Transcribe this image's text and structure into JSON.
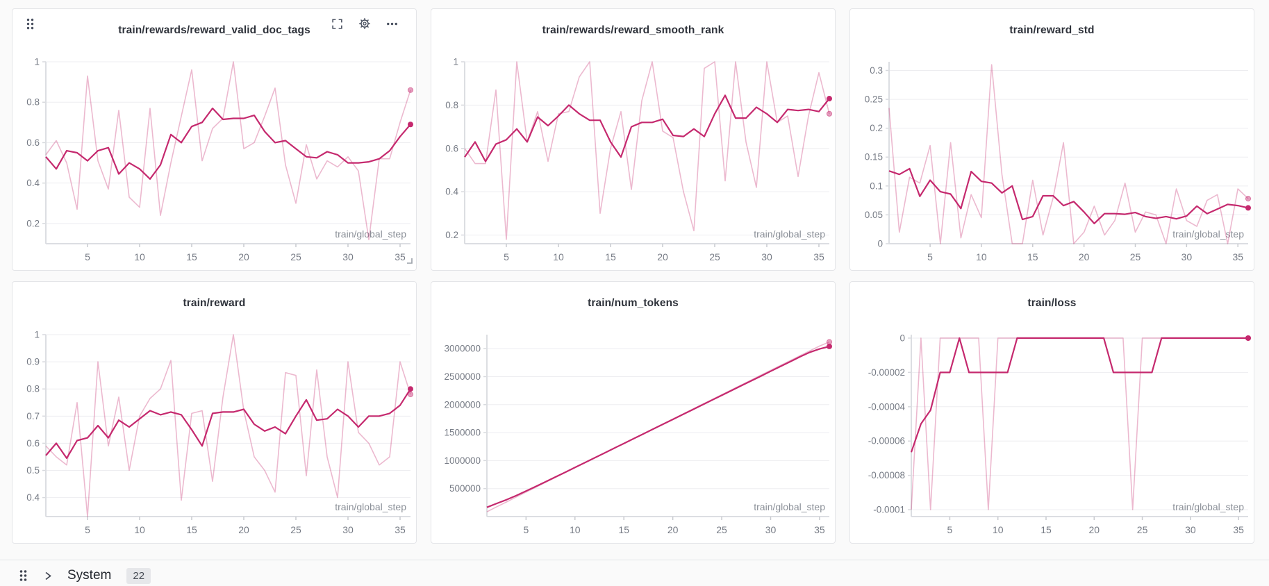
{
  "toolbar": {
    "icons": [
      "drag-handle",
      "fullscreen",
      "settings-gear",
      "more-options",
      "resize-corner"
    ]
  },
  "system_section": {
    "icons": [
      "drag-handle",
      "chevron-right"
    ],
    "label": "System",
    "count": "22"
  },
  "style_colors": {
    "series": "#c5296e",
    "raw_opacity": 0.33,
    "page_bg": "#fafafa",
    "card_bg": "#ffffff",
    "grid_line": "#ededf0",
    "axis_line": "#dcdee2",
    "tick_text": "#767b85"
  },
  "chart_data": [
    {
      "type": "line",
      "title": "train/rewards/reward_valid_doc_tags",
      "x_axis_label": "train/global_step",
      "x_range": [
        1,
        36
      ],
      "x_ticks": [
        5,
        10,
        15,
        20,
        25,
        30,
        35
      ],
      "ylim": [
        0.1,
        1.0
      ],
      "y_ticks": [
        1,
        0.8,
        0.6,
        0.4,
        0.2
      ],
      "y_tick_labels": [
        "1",
        "0.8",
        "0.6",
        "0.4",
        "0.2"
      ],
      "color": "#c5296e",
      "tools_visible": true,
      "series": [
        {
          "name": "raw",
          "values": [
            0.54,
            0.61,
            0.5,
            0.27,
            0.93,
            0.51,
            0.37,
            0.76,
            0.33,
            0.28,
            0.77,
            0.24,
            0.5,
            0.73,
            0.96,
            0.51,
            0.67,
            0.72,
            1.0,
            0.57,
            0.6,
            0.73,
            0.87,
            0.49,
            0.3,
            0.59,
            0.42,
            0.51,
            0.48,
            0.53,
            0.46,
            0.12,
            0.52,
            0.52,
            0.7,
            0.86
          ]
        },
        {
          "name": "smoothed",
          "values": [
            0.53,
            0.47,
            0.56,
            0.55,
            0.51,
            0.56,
            0.575,
            0.445,
            0.5,
            0.47,
            0.42,
            0.49,
            0.64,
            0.6,
            0.68,
            0.7,
            0.77,
            0.715,
            0.72,
            0.72,
            0.735,
            0.655,
            0.6,
            0.61,
            0.57,
            0.53,
            0.525,
            0.555,
            0.54,
            0.5,
            0.5,
            0.505,
            0.52,
            0.56,
            0.63,
            0.69
          ]
        }
      ]
    },
    {
      "type": "line",
      "title": "train/rewards/reward_smooth_rank",
      "x_axis_label": "train/global_step",
      "x_range": [
        1,
        36
      ],
      "x_ticks": [
        5,
        10,
        15,
        20,
        25,
        30,
        35
      ],
      "ylim": [
        0.16,
        1.0
      ],
      "y_ticks": [
        1,
        0.8,
        0.6,
        0.4,
        0.2
      ],
      "y_tick_labels": [
        "1",
        "0.8",
        "0.6",
        "0.4",
        "0.2"
      ],
      "color": "#c5296e",
      "tools_visible": false,
      "series": [
        {
          "name": "raw",
          "values": [
            0.6,
            0.53,
            0.53,
            0.87,
            0.18,
            1.0,
            0.63,
            0.77,
            0.54,
            0.76,
            0.77,
            0.93,
            1.0,
            0.3,
            0.6,
            0.77,
            0.41,
            0.82,
            1.0,
            0.68,
            0.65,
            0.4,
            0.22,
            0.97,
            1.0,
            0.45,
            1.0,
            0.63,
            0.42,
            1.0,
            0.72,
            0.75,
            0.47,
            0.75,
            0.95,
            0.76
          ]
        },
        {
          "name": "smoothed",
          "values": [
            0.56,
            0.63,
            0.54,
            0.62,
            0.64,
            0.69,
            0.63,
            0.745,
            0.705,
            0.75,
            0.8,
            0.76,
            0.73,
            0.73,
            0.63,
            0.56,
            0.7,
            0.72,
            0.72,
            0.735,
            0.66,
            0.655,
            0.69,
            0.655,
            0.76,
            0.845,
            0.74,
            0.74,
            0.79,
            0.76,
            0.72,
            0.78,
            0.775,
            0.78,
            0.77,
            0.83
          ]
        }
      ]
    },
    {
      "type": "line",
      "title": "train/reward_std",
      "x_axis_label": "train/global_step",
      "x_range": [
        1,
        36
      ],
      "x_ticks": [
        5,
        10,
        15,
        20,
        25,
        30,
        35
      ],
      "ylim": [
        0,
        0.315
      ],
      "y_ticks": [
        0.3,
        0.25,
        0.2,
        0.15,
        0.1,
        0.05,
        0
      ],
      "y_tick_labels": [
        "0.3",
        "0.25",
        "0.2",
        "0.15",
        "0.1",
        "0.05",
        "0"
      ],
      "color": "#c5296e",
      "tools_visible": false,
      "series": [
        {
          "name": "raw",
          "values": [
            0.235,
            0.02,
            0.115,
            0.105,
            0.17,
            0.0,
            0.175,
            0.01,
            0.085,
            0.045,
            0.31,
            0.12,
            0.0,
            0.0,
            0.11,
            0.015,
            0.08,
            0.175,
            0.0,
            0.02,
            0.065,
            0.015,
            0.04,
            0.105,
            0.02,
            0.055,
            0.05,
            0.0,
            0.095,
            0.04,
            0.03,
            0.075,
            0.085,
            0.0,
            0.095,
            0.078
          ]
        },
        {
          "name": "smoothed",
          "values": [
            0.126,
            0.12,
            0.13,
            0.082,
            0.11,
            0.09,
            0.086,
            0.061,
            0.125,
            0.108,
            0.105,
            0.088,
            0.1,
            0.042,
            0.047,
            0.083,
            0.083,
            0.066,
            0.073,
            0.055,
            0.035,
            0.052,
            0.052,
            0.051,
            0.054,
            0.047,
            0.044,
            0.047,
            0.043,
            0.048,
            0.065,
            0.052,
            0.06,
            0.068,
            0.066,
            0.062
          ]
        }
      ]
    },
    {
      "type": "line",
      "title": "train/reward",
      "x_axis_label": "train/global_step",
      "x_range": [
        1,
        36
      ],
      "x_ticks": [
        5,
        10,
        15,
        20,
        25,
        30,
        35
      ],
      "ylim": [
        0.33,
        1.0
      ],
      "y_ticks": [
        1,
        0.9,
        0.8,
        0.7,
        0.6,
        0.5,
        0.4
      ],
      "y_tick_labels": [
        "1",
        "0.9",
        "0.8",
        "0.7",
        "0.6",
        "0.5",
        "0.4"
      ],
      "color": "#c5296e",
      "tools_visible": false,
      "series": [
        {
          "name": "raw",
          "values": [
            0.59,
            0.55,
            0.52,
            0.75,
            0.33,
            0.9,
            0.59,
            0.77,
            0.5,
            0.7,
            0.765,
            0.8,
            0.905,
            0.39,
            0.71,
            0.72,
            0.46,
            0.77,
            1.0,
            0.72,
            0.55,
            0.5,
            0.42,
            0.86,
            0.85,
            0.48,
            0.87,
            0.55,
            0.4,
            0.9,
            0.64,
            0.6,
            0.52,
            0.55,
            0.9,
            0.78
          ]
        },
        {
          "name": "smoothed",
          "values": [
            0.555,
            0.6,
            0.545,
            0.61,
            0.62,
            0.665,
            0.62,
            0.685,
            0.66,
            0.69,
            0.72,
            0.705,
            0.715,
            0.705,
            0.65,
            0.59,
            0.71,
            0.715,
            0.715,
            0.725,
            0.67,
            0.645,
            0.66,
            0.635,
            0.7,
            0.76,
            0.685,
            0.69,
            0.725,
            0.7,
            0.66,
            0.7,
            0.7,
            0.71,
            0.74,
            0.8
          ]
        }
      ]
    },
    {
      "type": "line",
      "title": "train/num_tokens",
      "x_axis_label": "train/global_step",
      "x_range": [
        1,
        36
      ],
      "x_ticks": [
        5,
        10,
        15,
        20,
        25,
        30,
        35
      ],
      "ylim": [
        0,
        3250000
      ],
      "y_ticks": [
        3000000,
        2500000,
        2000000,
        1500000,
        1000000,
        500000
      ],
      "y_tick_labels": [
        "3000000",
        "2500000",
        "2000000",
        "1500000",
        "1000000",
        "500000"
      ],
      "color": "#c5296e",
      "tools_visible": false,
      "series": [
        {
          "name": "raw",
          "values": [
            85000,
            175000,
            260000,
            350000,
            437000,
            524000,
            611000,
            698000,
            785000,
            872000,
            959000,
            1046000,
            1133000,
            1220000,
            1307000,
            1394000,
            1481000,
            1568000,
            1655000,
            1742000,
            1829000,
            1916000,
            2003000,
            2090000,
            2177000,
            2264000,
            2351000,
            2438000,
            2525000,
            2612000,
            2699000,
            2786000,
            2873000,
            2960000,
            3047000,
            3120000
          ]
        },
        {
          "name": "smoothed",
          "values": [
            165000,
            235000,
            300000,
            375000,
            455000,
            538000,
            622000,
            707000,
            792000,
            877000,
            962000,
            1048000,
            1134000,
            1220000,
            1306000,
            1392000,
            1478000,
            1564000,
            1650000,
            1736000,
            1822000,
            1908000,
            1994000,
            2080000,
            2166000,
            2252000,
            2338000,
            2424000,
            2510000,
            2596000,
            2682000,
            2768000,
            2854000,
            2935000,
            2995000,
            3040000
          ]
        }
      ]
    },
    {
      "type": "line",
      "title": "train/loss",
      "x_axis_label": "train/global_step",
      "x_range": [
        1,
        36
      ],
      "x_ticks": [
        5,
        10,
        15,
        20,
        25,
        30,
        35
      ],
      "ylim": [
        -0.000104,
        2e-06
      ],
      "y_ticks": [
        0,
        -2e-05,
        -4e-05,
        -6e-05,
        -8e-05,
        -0.0001
      ],
      "y_tick_labels": [
        "0",
        "-0.00002",
        "-0.00004",
        "-0.00006",
        "-0.00008",
        "-0.0001"
      ],
      "color": "#c5296e",
      "tools_visible": false,
      "series": [
        {
          "name": "raw",
          "values": [
            -0.0001,
            0,
            -0.0001,
            0,
            0,
            0,
            0,
            0,
            -0.0001,
            0,
            0,
            0,
            0,
            0,
            0,
            0,
            0,
            0,
            0,
            0,
            0,
            0,
            0,
            -0.0001,
            0,
            0,
            0,
            0,
            0,
            0,
            0,
            0,
            0,
            0,
            0,
            0
          ]
        },
        {
          "name": "smoothed",
          "values": [
            -6.65e-05,
            -5e-05,
            -4.2e-05,
            -2e-05,
            -2e-05,
            0,
            -2e-05,
            -2e-05,
            -2e-05,
            -2e-05,
            -2e-05,
            0,
            0,
            0,
            0,
            0,
            0,
            0,
            0,
            0,
            0,
            -2e-05,
            -2e-05,
            -2e-05,
            -2e-05,
            -2e-05,
            0,
            0,
            0,
            0,
            0,
            0,
            0,
            0,
            0,
            0
          ]
        }
      ]
    }
  ]
}
